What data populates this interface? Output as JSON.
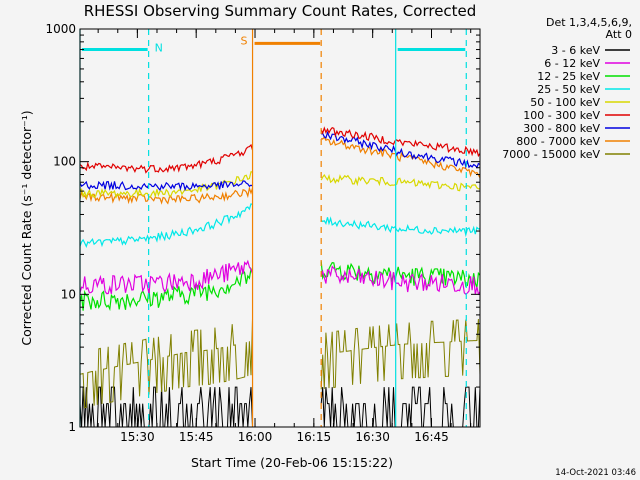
{
  "chart_data": {
    "type": "line",
    "title": "RHESSI Observing Summary Count Rates, Corrected",
    "xlabel": "Start Time (20-Feb-06 15:15:22)",
    "ylabel": "Corrected Count Rate (s⁻¹ detector⁻¹)",
    "yscale": "log",
    "ylim": [
      1,
      1000
    ],
    "xlim_minutes": [
      0,
      102
    ],
    "y_ticks": [
      {
        "value": 1,
        "label": "1"
      },
      {
        "value": 10,
        "label": "10"
      },
      {
        "value": 100,
        "label": "100"
      },
      {
        "value": 1000,
        "label": "1000"
      }
    ],
    "x_ticks": [
      {
        "t": 14.63,
        "label": "15:30"
      },
      {
        "t": 29.63,
        "label": "15:45"
      },
      {
        "t": 44.63,
        "label": "16:00"
      },
      {
        "t": 59.63,
        "label": "16:15"
      },
      {
        "t": 74.63,
        "label": "16:30"
      },
      {
        "t": 89.63,
        "label": "16:45"
      }
    ],
    "legend": {
      "header": [
        "Det 1,3,4,5,6,9,",
        "Att 0"
      ],
      "position": "right"
    },
    "series": [
      {
        "name": "3 - 6 keV",
        "color": "#000000",
        "seg1": [
          1.5,
          1.5,
          1.5
        ],
        "seg2": [
          1.5,
          1.5,
          1.5
        ]
      },
      {
        "name": "6 - 12 keV",
        "color": "#e000e0",
        "seg1": [
          12,
          12,
          17
        ],
        "seg2": [
          14,
          12.5,
          12
        ]
      },
      {
        "name": "12 - 25 keV",
        "color": "#00e000",
        "seg1": [
          9,
          9.5,
          14
        ],
        "seg2": [
          16,
          14,
          13
        ]
      },
      {
        "name": "25 - 50 keV",
        "color": "#00e8e8",
        "seg1": [
          24,
          27,
          46
        ],
        "seg2": [
          36,
          31,
          30
        ]
      },
      {
        "name": "50 - 100 keV",
        "color": "#d8d800",
        "seg1": [
          58,
          57,
          80
        ],
        "seg2": [
          75,
          70,
          63
        ]
      },
      {
        "name": "100 - 300 keV",
        "color": "#e00000",
        "seg1": [
          92,
          86,
          128
        ],
        "seg2": [
          175,
          140,
          118
        ]
      },
      {
        "name": "300 - 800 keV",
        "color": "#0000e0",
        "seg1": [
          67,
          65,
          68
        ],
        "seg2": [
          160,
          118,
          92
        ]
      },
      {
        "name": "800 - 7000 keV",
        "color": "#f08000",
        "seg1": [
          55,
          51,
          60
        ],
        "seg2": [
          145,
          108,
          80
        ]
      },
      {
        "name": "7000 - 15000 keV",
        "color": "#808000",
        "seg1": [
          2.5,
          3.5,
          4.5
        ],
        "seg2": [
          3.5,
          4.2,
          4.5
        ]
      }
    ],
    "segments_minutes": [
      [
        0,
        44.0
      ],
      [
        61.5,
        102
      ]
    ],
    "annotations": [
      {
        "label": "N",
        "t_start": 0,
        "t_end": 17.5,
        "level": 700,
        "color": "#00e0e0"
      },
      {
        "label": "S",
        "t_start": 44.0,
        "t_end": 61.5,
        "level": 780,
        "color": "#f08000"
      },
      {
        "label": "",
        "t_start": 80.5,
        "t_end": 98.5,
        "level": 700,
        "color": "#00e0e0"
      }
    ],
    "vertical_markers": [
      {
        "t": 0,
        "color": "#00e0e0",
        "style": "solid"
      },
      {
        "t": 17.5,
        "color": "#00e0e0",
        "style": "dashed"
      },
      {
        "t": 44.0,
        "color": "#f08000",
        "style": "solid"
      },
      {
        "t": 61.5,
        "color": "#f08000",
        "style": "dashed"
      },
      {
        "t": 80.5,
        "color": "#00e0e0",
        "style": "solid"
      },
      {
        "t": 98.5,
        "color": "#00e0e0",
        "style": "dashed"
      }
    ]
  },
  "footer": {
    "timestamp": "14-Oct-2021 03:46"
  }
}
